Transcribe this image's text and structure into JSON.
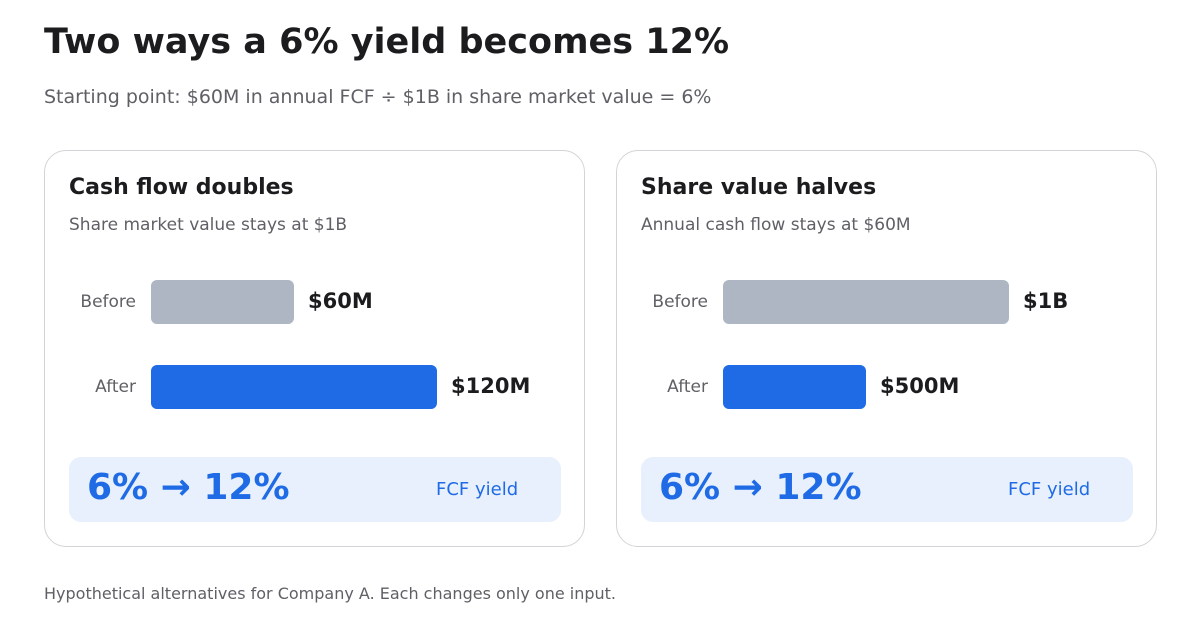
{
  "header": {
    "title": "Two ways a 6% yield becomes 12%",
    "subtitle": "Starting point: $60M in annual FCF ÷ $1B in share market value = 6%"
  },
  "cards": [
    {
      "title": "Cash flow doubles",
      "subtitle": "Share market value stays at $1B",
      "rows": [
        {
          "label": "Before",
          "value_label": "$60M"
        },
        {
          "label": "After",
          "value_label": "$120M"
        }
      ],
      "yield_change": "6% → 12%",
      "yield_label": "FCF yield"
    },
    {
      "title": "Share value halves",
      "subtitle": "Annual cash flow stays at $60M",
      "rows": [
        {
          "label": "Before",
          "value_label": "$1B"
        },
        {
          "label": "After",
          "value_label": "$500M"
        }
      ],
      "yield_change": "6% → 12%",
      "yield_label": "FCF yield"
    }
  ],
  "footnote": "Hypothetical alternatives for Company A. Each changes only one input.",
  "colors": {
    "before_bar": "#adb6c2",
    "after_bar": "#1f6be6",
    "yield_box_bg": "#e7f0fc",
    "accent_text": "#1f6be6"
  },
  "chart_data": [
    {
      "type": "bar",
      "orientation": "horizontal",
      "title": "Cash flow doubles",
      "subtitle": "Share market value stays at $1B",
      "categories": [
        "Before",
        "After"
      ],
      "values": [
        60000000,
        120000000
      ],
      "data_labels": [
        "$60M",
        "$120M"
      ],
      "xlim": [
        0,
        120000000
      ],
      "colors": [
        "#adb6c2",
        "#1f6be6"
      ],
      "grid": false
    },
    {
      "type": "bar",
      "orientation": "horizontal",
      "title": "Share value halves",
      "subtitle": "Annual cash flow stays at $60M",
      "categories": [
        "Before",
        "After"
      ],
      "values": [
        1000000000,
        500000000
      ],
      "data_labels": [
        "$1B",
        "$500M"
      ],
      "xlim": [
        0,
        1000000000
      ],
      "colors": [
        "#adb6c2",
        "#1f6be6"
      ],
      "grid": false
    }
  ]
}
